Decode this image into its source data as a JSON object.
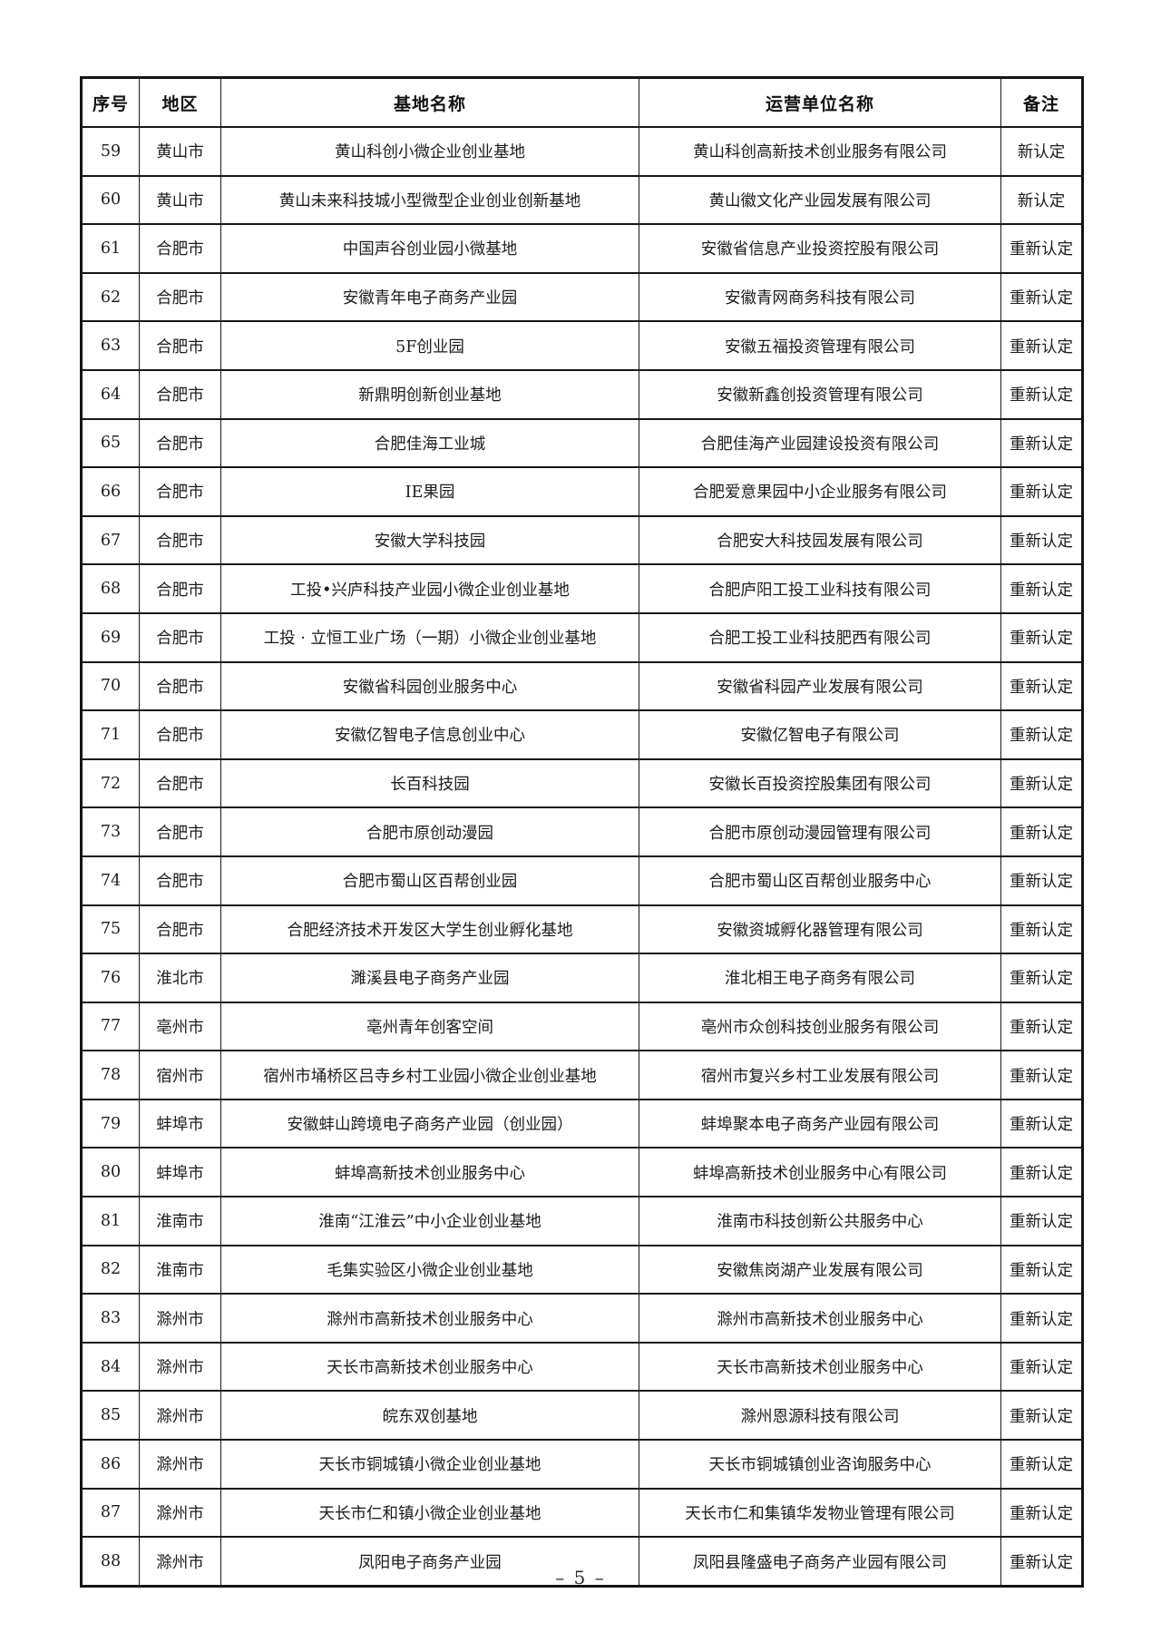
{
  "table": {
    "headers": [
      "序号",
      "地区",
      "基地名称",
      "运营单位名称",
      "备注"
    ],
    "rows": [
      {
        "no": "59",
        "region": "黄山市",
        "base": "黄山科创小微企业创业基地",
        "operator": "黄山科创高新技术创业服务有限公司",
        "note": "新认定"
      },
      {
        "no": "60",
        "region": "黄山市",
        "base": "黄山未来科技城小型微型企业创业创新基地",
        "operator": "黄山徽文化产业园发展有限公司",
        "note": "新认定"
      },
      {
        "no": "61",
        "region": "合肥市",
        "base": "中国声谷创业园小微基地",
        "operator": "安徽省信息产业投资控股有限公司",
        "note": "重新认定"
      },
      {
        "no": "62",
        "region": "合肥市",
        "base": "安徽青年电子商务产业园",
        "operator": "安徽青网商务科技有限公司",
        "note": "重新认定"
      },
      {
        "no": "63",
        "region": "合肥市",
        "base": "5F创业园",
        "operator": "安徽五福投资管理有限公司",
        "note": "重新认定"
      },
      {
        "no": "64",
        "region": "合肥市",
        "base": "新鼎明创新创业基地",
        "operator": "安徽新鑫创投资管理有限公司",
        "note": "重新认定"
      },
      {
        "no": "65",
        "region": "合肥市",
        "base": "合肥佳海工业城",
        "operator": "合肥佳海产业园建设投资有限公司",
        "note": "重新认定"
      },
      {
        "no": "66",
        "region": "合肥市",
        "base": "IE果园",
        "operator": "合肥爱意果园中小企业服务有限公司",
        "note": "重新认定"
      },
      {
        "no": "67",
        "region": "合肥市",
        "base": "安徽大学科技园",
        "operator": "合肥安大科技园发展有限公司",
        "note": "重新认定"
      },
      {
        "no": "68",
        "region": "合肥市",
        "base": "工投•兴庐科技产业园小微企业创业基地",
        "operator": "合肥庐阳工投工业科技有限公司",
        "note": "重新认定"
      },
      {
        "no": "69",
        "region": "合肥市",
        "base": "工投 · 立恒工业广场（一期）小微企业创业基地",
        "operator": "合肥工投工业科技肥西有限公司",
        "note": "重新认定"
      },
      {
        "no": "70",
        "region": "合肥市",
        "base": "安徽省科园创业服务中心",
        "operator": "安徽省科园产业发展有限公司",
        "note": "重新认定"
      },
      {
        "no": "71",
        "region": "合肥市",
        "base": "安徽亿智电子信息创业中心",
        "operator": "安徽亿智电子有限公司",
        "note": "重新认定"
      },
      {
        "no": "72",
        "region": "合肥市",
        "base": "长百科技园",
        "operator": "安徽长百投资控股集团有限公司",
        "note": "重新认定"
      },
      {
        "no": "73",
        "region": "合肥市",
        "base": "合肥市原创动漫园",
        "operator": "合肥市原创动漫园管理有限公司",
        "note": "重新认定"
      },
      {
        "no": "74",
        "region": "合肥市",
        "base": "合肥市蜀山区百帮创业园",
        "operator": "合肥市蜀山区百帮创业服务中心",
        "note": "重新认定"
      },
      {
        "no": "75",
        "region": "合肥市",
        "base": "合肥经济技术开发区大学生创业孵化基地",
        "operator": "安徽资城孵化器管理有限公司",
        "note": "重新认定"
      },
      {
        "no": "76",
        "region": "淮北市",
        "base": "濉溪县电子商务产业园",
        "operator": "淮北相王电子商务有限公司",
        "note": "重新认定"
      },
      {
        "no": "77",
        "region": "亳州市",
        "base": "亳州青年创客空间",
        "operator": "亳州市众创科技创业服务有限公司",
        "note": "重新认定"
      },
      {
        "no": "78",
        "region": "宿州市",
        "base": "宿州市埇桥区吕寺乡村工业园小微企业创业基地",
        "operator": "宿州市复兴乡村工业发展有限公司",
        "note": "重新认定"
      },
      {
        "no": "79",
        "region": "蚌埠市",
        "base": "安徽蚌山跨境电子商务产业园（创业园）",
        "operator": "蚌埠聚本电子商务产业园有限公司",
        "note": "重新认定"
      },
      {
        "no": "80",
        "region": "蚌埠市",
        "base": "蚌埠高新技术创业服务中心",
        "operator": "蚌埠高新技术创业服务中心有限公司",
        "note": "重新认定"
      },
      {
        "no": "81",
        "region": "淮南市",
        "base": "淮南“江淮云”中小企业创业基地",
        "operator": "淮南市科技创新公共服务中心",
        "note": "重新认定"
      },
      {
        "no": "82",
        "region": "淮南市",
        "base": "毛集实验区小微企业创业基地",
        "operator": "安徽焦岗湖产业发展有限公司",
        "note": "重新认定"
      },
      {
        "no": "83",
        "region": "滁州市",
        "base": "滁州市高新技术创业服务中心",
        "operator": "滁州市高新技术创业服务中心",
        "note": "重新认定"
      },
      {
        "no": "84",
        "region": "滁州市",
        "base": "天长市高新技术创业服务中心",
        "operator": "天长市高新技术创业服务中心",
        "note": "重新认定"
      },
      {
        "no": "85",
        "region": "滁州市",
        "base": "皖东双创基地",
        "operator": "滁州恩源科技有限公司",
        "note": "重新认定"
      },
      {
        "no": "86",
        "region": "滁州市",
        "base": "天长市铜城镇小微企业创业基地",
        "operator": "天长市铜城镇创业咨询服务中心",
        "note": "重新认定"
      },
      {
        "no": "87",
        "region": "滁州市",
        "base": "天长市仁和镇小微企业创业基地",
        "operator": "天长市仁和集镇华发物业管理有限公司",
        "note": "重新认定"
      },
      {
        "no": "88",
        "region": "滁州市",
        "base": "凤阳电子商务产业园",
        "operator": "凤阳县隆盛电子商务产业园有限公司",
        "note": "重新认定"
      }
    ]
  },
  "footer": {
    "page_number": "– 5 –"
  }
}
